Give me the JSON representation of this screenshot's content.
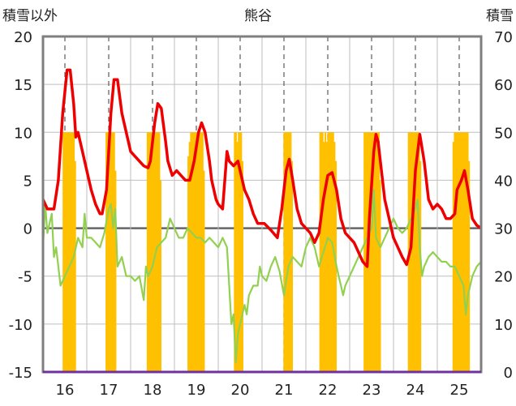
{
  "chart_data": {
    "type": "bar+line",
    "title": "熊谷",
    "ylabel_left": "積雪以外",
    "ylabel_right": "積雪",
    "ylim_left": [
      -15,
      20
    ],
    "ylim_right": [
      0,
      70
    ],
    "yticks_left": [
      "20",
      "15",
      "10",
      "5",
      "0",
      "-5",
      "-10",
      "-15"
    ],
    "yticks_right": [
      "70",
      "60",
      "50",
      "40",
      "30",
      "20",
      "10",
      "0"
    ],
    "xlim": [
      15.5,
      25.5
    ],
    "xticks": [
      "16",
      "17",
      "18",
      "19",
      "20",
      "21",
      "22",
      "23",
      "24",
      "25"
    ],
    "grid": {
      "vertical_dashed": true,
      "horizontal": true
    },
    "colors": {
      "red_line": "#ee0000",
      "green_line": "#92d050",
      "bars": "#ffc000",
      "frame": "#7f7f7f",
      "bottom_line": "#7030a0"
    },
    "series": [
      {
        "key": "red",
        "axis": "left",
        "points": [
          [
            15.5,
            3
          ],
          [
            15.6,
            2
          ],
          [
            15.75,
            2
          ],
          [
            15.85,
            5
          ],
          [
            15.95,
            12
          ],
          [
            16.05,
            16.5
          ],
          [
            16.12,
            16.5
          ],
          [
            16.2,
            13
          ],
          [
            16.25,
            9.5
          ],
          [
            16.3,
            10
          ],
          [
            16.4,
            8
          ],
          [
            16.5,
            6
          ],
          [
            16.6,
            4
          ],
          [
            16.7,
            2.5
          ],
          [
            16.8,
            1.5
          ],
          [
            16.85,
            1.5
          ],
          [
            16.95,
            4
          ],
          [
            17.05,
            12
          ],
          [
            17.12,
            15.5
          ],
          [
            17.2,
            15.5
          ],
          [
            17.3,
            12
          ],
          [
            17.4,
            10
          ],
          [
            17.5,
            8
          ],
          [
            17.6,
            7.5
          ],
          [
            17.7,
            7
          ],
          [
            17.8,
            6.5
          ],
          [
            17.9,
            6.3
          ],
          [
            17.95,
            7
          ],
          [
            18.05,
            11
          ],
          [
            18.12,
            13
          ],
          [
            18.2,
            12.5
          ],
          [
            18.3,
            9
          ],
          [
            18.35,
            7
          ],
          [
            18.45,
            5.5
          ],
          [
            18.55,
            6
          ],
          [
            18.65,
            5.5
          ],
          [
            18.75,
            5
          ],
          [
            18.85,
            5
          ],
          [
            18.95,
            7
          ],
          [
            19.05,
            10
          ],
          [
            19.12,
            11
          ],
          [
            19.2,
            10
          ],
          [
            19.3,
            7
          ],
          [
            19.35,
            5
          ],
          [
            19.45,
            3
          ],
          [
            19.5,
            2.5
          ],
          [
            19.6,
            2
          ],
          [
            19.7,
            8
          ],
          [
            19.75,
            7
          ],
          [
            19.85,
            6.5
          ],
          [
            19.95,
            7
          ],
          [
            20.0,
            6
          ],
          [
            20.1,
            4
          ],
          [
            20.2,
            3
          ],
          [
            20.3,
            1.5
          ],
          [
            20.4,
            0.5
          ],
          [
            20.55,
            0.5
          ],
          [
            20.7,
            -0.2
          ],
          [
            20.85,
            -1
          ],
          [
            20.95,
            2
          ],
          [
            21.05,
            6
          ],
          [
            21.12,
            7.2
          ],
          [
            21.2,
            5
          ],
          [
            21.3,
            2
          ],
          [
            21.4,
            0.5
          ],
          [
            21.5,
            0
          ],
          [
            21.6,
            -0.5
          ],
          [
            21.7,
            -1.5
          ],
          [
            21.8,
            -0.5
          ],
          [
            21.9,
            3
          ],
          [
            22.0,
            5.5
          ],
          [
            22.1,
            5.8
          ],
          [
            22.2,
            4
          ],
          [
            22.3,
            1
          ],
          [
            22.4,
            -0.5
          ],
          [
            22.5,
            -1
          ],
          [
            22.6,
            -1.5
          ],
          [
            22.7,
            -2.5
          ],
          [
            22.8,
            -3.5
          ],
          [
            22.9,
            -4
          ],
          [
            22.95,
            1
          ],
          [
            23.05,
            8
          ],
          [
            23.1,
            9.8
          ],
          [
            23.15,
            9
          ],
          [
            23.2,
            7
          ],
          [
            23.3,
            3
          ],
          [
            23.4,
            1
          ],
          [
            23.5,
            -1
          ],
          [
            23.6,
            -2
          ],
          [
            23.7,
            -3
          ],
          [
            23.8,
            -3.8
          ],
          [
            23.9,
            -2
          ],
          [
            24.0,
            6
          ],
          [
            24.1,
            9.8
          ],
          [
            24.2,
            7
          ],
          [
            24.3,
            3
          ],
          [
            24.4,
            2
          ],
          [
            24.5,
            2.5
          ],
          [
            24.6,
            2
          ],
          [
            24.7,
            1
          ],
          [
            24.8,
            1
          ],
          [
            24.9,
            1.5
          ],
          [
            24.95,
            4
          ],
          [
            25.05,
            5
          ],
          [
            25.12,
            6
          ],
          [
            25.2,
            4
          ],
          [
            25.3,
            1
          ],
          [
            25.4,
            0.3
          ],
          [
            25.5,
            0
          ]
        ]
      },
      {
        "key": "green",
        "axis": "left",
        "points": [
          [
            15.5,
            -2
          ],
          [
            15.55,
            2.5
          ],
          [
            15.6,
            -0.5
          ],
          [
            15.7,
            1.5
          ],
          [
            15.75,
            -3
          ],
          [
            15.8,
            -2
          ],
          [
            15.85,
            -4
          ],
          [
            15.9,
            -6
          ],
          [
            16.0,
            -5
          ],
          [
            16.1,
            -4
          ],
          [
            16.2,
            -3
          ],
          [
            16.3,
            -1
          ],
          [
            16.4,
            -2
          ],
          [
            16.45,
            1.5
          ],
          [
            16.5,
            -1
          ],
          [
            16.6,
            -1
          ],
          [
            16.7,
            -1.5
          ],
          [
            16.8,
            -2
          ],
          [
            16.9,
            -0.5
          ],
          [
            17.0,
            2
          ],
          [
            17.05,
            2.5
          ],
          [
            17.1,
            0
          ],
          [
            17.15,
            2
          ],
          [
            17.2,
            -4
          ],
          [
            17.3,
            -3
          ],
          [
            17.4,
            -5
          ],
          [
            17.5,
            -5
          ],
          [
            17.6,
            -5.5
          ],
          [
            17.7,
            -5
          ],
          [
            17.8,
            -7.5
          ],
          [
            17.85,
            -4
          ],
          [
            17.9,
            -5
          ],
          [
            18.0,
            -4
          ],
          [
            18.1,
            -2
          ],
          [
            18.2,
            -1.5
          ],
          [
            18.3,
            -1
          ],
          [
            18.4,
            1
          ],
          [
            18.5,
            0
          ],
          [
            18.6,
            -1
          ],
          [
            18.7,
            -1
          ],
          [
            18.8,
            0
          ],
          [
            18.9,
            -0.5
          ],
          [
            19.0,
            -1
          ],
          [
            19.1,
            -1
          ],
          [
            19.2,
            -1.5
          ],
          [
            19.3,
            -1
          ],
          [
            19.4,
            -1.5
          ],
          [
            19.5,
            -2
          ],
          [
            19.6,
            -1
          ],
          [
            19.7,
            -2
          ],
          [
            19.75,
            -6
          ],
          [
            19.8,
            -10
          ],
          [
            19.85,
            -9
          ],
          [
            19.9,
            -14
          ],
          [
            19.95,
            -11
          ],
          [
            20.0,
            -10
          ],
          [
            20.1,
            -8
          ],
          [
            20.15,
            -9
          ],
          [
            20.2,
            -7
          ],
          [
            20.3,
            -6
          ],
          [
            20.4,
            -6
          ],
          [
            20.45,
            -4
          ],
          [
            20.5,
            -5
          ],
          [
            20.6,
            -5.5
          ],
          [
            20.7,
            -4
          ],
          [
            20.8,
            -3
          ],
          [
            20.9,
            -4.5
          ],
          [
            21.0,
            -7
          ],
          [
            21.1,
            -4
          ],
          [
            21.2,
            -3
          ],
          [
            21.3,
            -3.5
          ],
          [
            21.4,
            -4
          ],
          [
            21.5,
            -2
          ],
          [
            21.6,
            -1
          ],
          [
            21.7,
            -2
          ],
          [
            21.8,
            -4
          ],
          [
            21.9,
            -2.5
          ],
          [
            22.0,
            -1
          ],
          [
            22.1,
            -1.5
          ],
          [
            22.2,
            -4
          ],
          [
            22.3,
            -6
          ],
          [
            22.35,
            -7
          ],
          [
            22.4,
            -6
          ],
          [
            22.5,
            -5
          ],
          [
            22.6,
            -4
          ],
          [
            22.7,
            -3
          ],
          [
            22.8,
            -2
          ],
          [
            22.9,
            -1
          ],
          [
            23.0,
            0
          ],
          [
            23.05,
            4
          ],
          [
            23.1,
            -1
          ],
          [
            23.2,
            -2
          ],
          [
            23.3,
            -1
          ],
          [
            23.4,
            0
          ],
          [
            23.5,
            1
          ],
          [
            23.6,
            0
          ],
          [
            23.7,
            -0.5
          ],
          [
            23.8,
            0
          ],
          [
            23.9,
            1
          ],
          [
            24.0,
            2
          ],
          [
            24.05,
            3
          ],
          [
            24.1,
            -2
          ],
          [
            24.15,
            -5
          ],
          [
            24.2,
            -4
          ],
          [
            24.3,
            -3
          ],
          [
            24.4,
            -2.5
          ],
          [
            24.5,
            -3
          ],
          [
            24.6,
            -3.5
          ],
          [
            24.7,
            -3.5
          ],
          [
            24.8,
            -4
          ],
          [
            24.9,
            -4
          ],
          [
            25.0,
            -5
          ],
          [
            25.1,
            -6
          ],
          [
            25.15,
            -9
          ],
          [
            25.2,
            -7
          ],
          [
            25.3,
            -5
          ],
          [
            25.4,
            -4
          ],
          [
            25.5,
            -3.5
          ]
        ]
      }
    ],
    "bars": {
      "axis": "right",
      "width": 0.025,
      "values": [
        [
          15.96,
          50
        ],
        [
          15.99,
          50
        ],
        [
          16.02,
          50
        ],
        [
          16.05,
          50
        ],
        [
          16.08,
          50
        ],
        [
          16.11,
          50
        ],
        [
          16.14,
          50
        ],
        [
          16.17,
          50
        ],
        [
          16.2,
          50
        ],
        [
          16.23,
          44
        ],
        [
          16.94,
          50
        ],
        [
          16.97,
          50
        ],
        [
          17.0,
          50
        ],
        [
          17.03,
          50
        ],
        [
          17.06,
          50
        ],
        [
          17.09,
          50
        ],
        [
          17.12,
          50
        ],
        [
          17.15,
          42
        ],
        [
          17.88,
          50
        ],
        [
          17.91,
          50
        ],
        [
          17.94,
          50
        ],
        [
          17.97,
          50
        ],
        [
          18.0,
          50
        ],
        [
          18.03,
          50
        ],
        [
          18.06,
          50
        ],
        [
          18.09,
          50
        ],
        [
          18.12,
          50
        ],
        [
          18.15,
          50
        ],
        [
          18.18,
          40
        ],
        [
          18.81,
          45
        ],
        [
          18.84,
          48
        ],
        [
          18.87,
          50
        ],
        [
          18.9,
          50
        ],
        [
          18.93,
          50
        ],
        [
          18.96,
          50
        ],
        [
          18.99,
          50
        ],
        [
          19.02,
          50
        ],
        [
          19.05,
          50
        ],
        [
          19.08,
          50
        ],
        [
          19.11,
          50
        ],
        [
          19.14,
          50
        ],
        [
          19.17,
          42
        ],
        [
          19.87,
          50
        ],
        [
          19.9,
          50
        ],
        [
          19.93,
          48
        ],
        [
          19.96,
          50
        ],
        [
          19.99,
          50
        ],
        [
          20.02,
          50
        ],
        [
          20.05,
          44
        ],
        [
          21.0,
          50
        ],
        [
          21.03,
          50
        ],
        [
          21.06,
          50
        ],
        [
          21.09,
          50
        ],
        [
          21.12,
          50
        ],
        [
          21.15,
          50
        ],
        [
          21.18,
          44
        ],
        [
          21.82,
          50
        ],
        [
          21.85,
          50
        ],
        [
          21.88,
          50
        ],
        [
          21.91,
          48
        ],
        [
          21.94,
          50
        ],
        [
          21.97,
          48
        ],
        [
          22.0,
          50
        ],
        [
          22.03,
          50
        ],
        [
          22.06,
          50
        ],
        [
          22.09,
          50
        ],
        [
          22.12,
          50
        ],
        [
          22.15,
          48
        ],
        [
          22.18,
          44
        ],
        [
          22.83,
          50
        ],
        [
          22.86,
          50
        ],
        [
          22.89,
          50
        ],
        [
          22.92,
          50
        ],
        [
          22.95,
          50
        ],
        [
          22.98,
          50
        ],
        [
          23.01,
          50
        ],
        [
          23.04,
          50
        ],
        [
          23.07,
          50
        ],
        [
          23.1,
          50
        ],
        [
          23.13,
          50
        ],
        [
          23.16,
          50
        ],
        [
          23.19,
          40
        ],
        [
          23.84,
          50
        ],
        [
          23.87,
          50
        ],
        [
          23.9,
          50
        ],
        [
          23.93,
          50
        ],
        [
          23.96,
          50
        ],
        [
          23.99,
          50
        ],
        [
          24.02,
          50
        ],
        [
          24.05,
          50
        ],
        [
          24.08,
          50
        ],
        [
          24.11,
          44
        ],
        [
          24.86,
          48
        ],
        [
          24.89,
          50
        ],
        [
          24.92,
          50
        ],
        [
          24.95,
          50
        ],
        [
          24.98,
          50
        ],
        [
          25.01,
          50
        ],
        [
          25.04,
          50
        ],
        [
          25.07,
          50
        ],
        [
          25.1,
          50
        ],
        [
          25.13,
          50
        ],
        [
          25.16,
          50
        ],
        [
          25.19,
          50
        ],
        [
          25.22,
          44
        ]
      ]
    }
  }
}
